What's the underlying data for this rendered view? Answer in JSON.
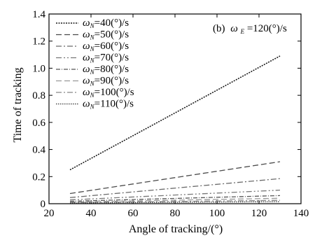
{
  "chart_data": {
    "type": "line",
    "panel_label": "(b)",
    "panel_omega_symbol": "ω",
    "panel_omega_subscript": "E",
    "panel_omega_value": "=120(°)/s",
    "xlabel": "Angle of tracking/(°)",
    "ylabel": "Time of tracking",
    "xlim": [
      20,
      140
    ],
    "ylim": [
      0,
      1.4
    ],
    "x_ticks": [
      20,
      40,
      60,
      80,
      100,
      120,
      140
    ],
    "y_ticks": [
      0,
      0.2,
      0.4,
      0.6,
      0.8,
      1.0,
      1.2,
      1.4
    ],
    "x_tick_labels": [
      "20",
      "40",
      "60",
      "80",
      "100",
      "120",
      "140"
    ],
    "y_tick_labels": [
      "0",
      "0.2",
      "0.4",
      "0.6",
      "0.8",
      "1.0",
      "1.2",
      "1.4"
    ],
    "grid": false,
    "legend_position": "top-left",
    "x": [
      30,
      130
    ],
    "series": [
      {
        "name": "=40(°)/s",
        "symbol": "ω",
        "subscript": "N",
        "values": [
          0.25,
          1.09
        ],
        "dash": "2,1.5",
        "color": "#1a1a1a",
        "width": 1.6
      },
      {
        "name": "=50(°)/s",
        "symbol": "ω",
        "subscript": "N",
        "values": [
          0.075,
          0.31
        ],
        "dash": "8,4",
        "color": "#4a4a4a",
        "width": 1.3
      },
      {
        "name": "=60(°)/s",
        "symbol": "ω",
        "subscript": "N",
        "values": [
          0.045,
          0.185
        ],
        "dash": "8,3,2,3",
        "color": "#6a6a6a",
        "width": 1.3
      },
      {
        "name": "=70(°)/s",
        "symbol": "ω",
        "subscript": "N",
        "values": [
          0.028,
          0.1
        ],
        "dash": "8,3,2,3,2,3",
        "color": "#777777",
        "width": 1.3
      },
      {
        "name": "=80(°)/s",
        "symbol": "ω",
        "subscript": "N",
        "values": [
          0.018,
          0.06
        ],
        "dash": "6,2,1,2",
        "color": "#555555",
        "width": 1.3
      },
      {
        "name": "=90(°)/s",
        "symbol": "ω",
        "subscript": "N",
        "values": [
          0.012,
          0.04
        ],
        "dash": "8,4",
        "color": "#999999",
        "width": 1.3
      },
      {
        "name": "=100(°)/s",
        "symbol": "ω",
        "subscript": "N",
        "values": [
          0.008,
          0.025
        ],
        "dash": "8,3,2,3",
        "color": "#888888",
        "width": 1.3
      },
      {
        "name": "=110(°)/s",
        "symbol": "ω",
        "subscript": "N",
        "values": [
          0.005,
          0.015
        ],
        "dash": "1.5,1.5",
        "color": "#333333",
        "width": 1.3
      }
    ]
  }
}
